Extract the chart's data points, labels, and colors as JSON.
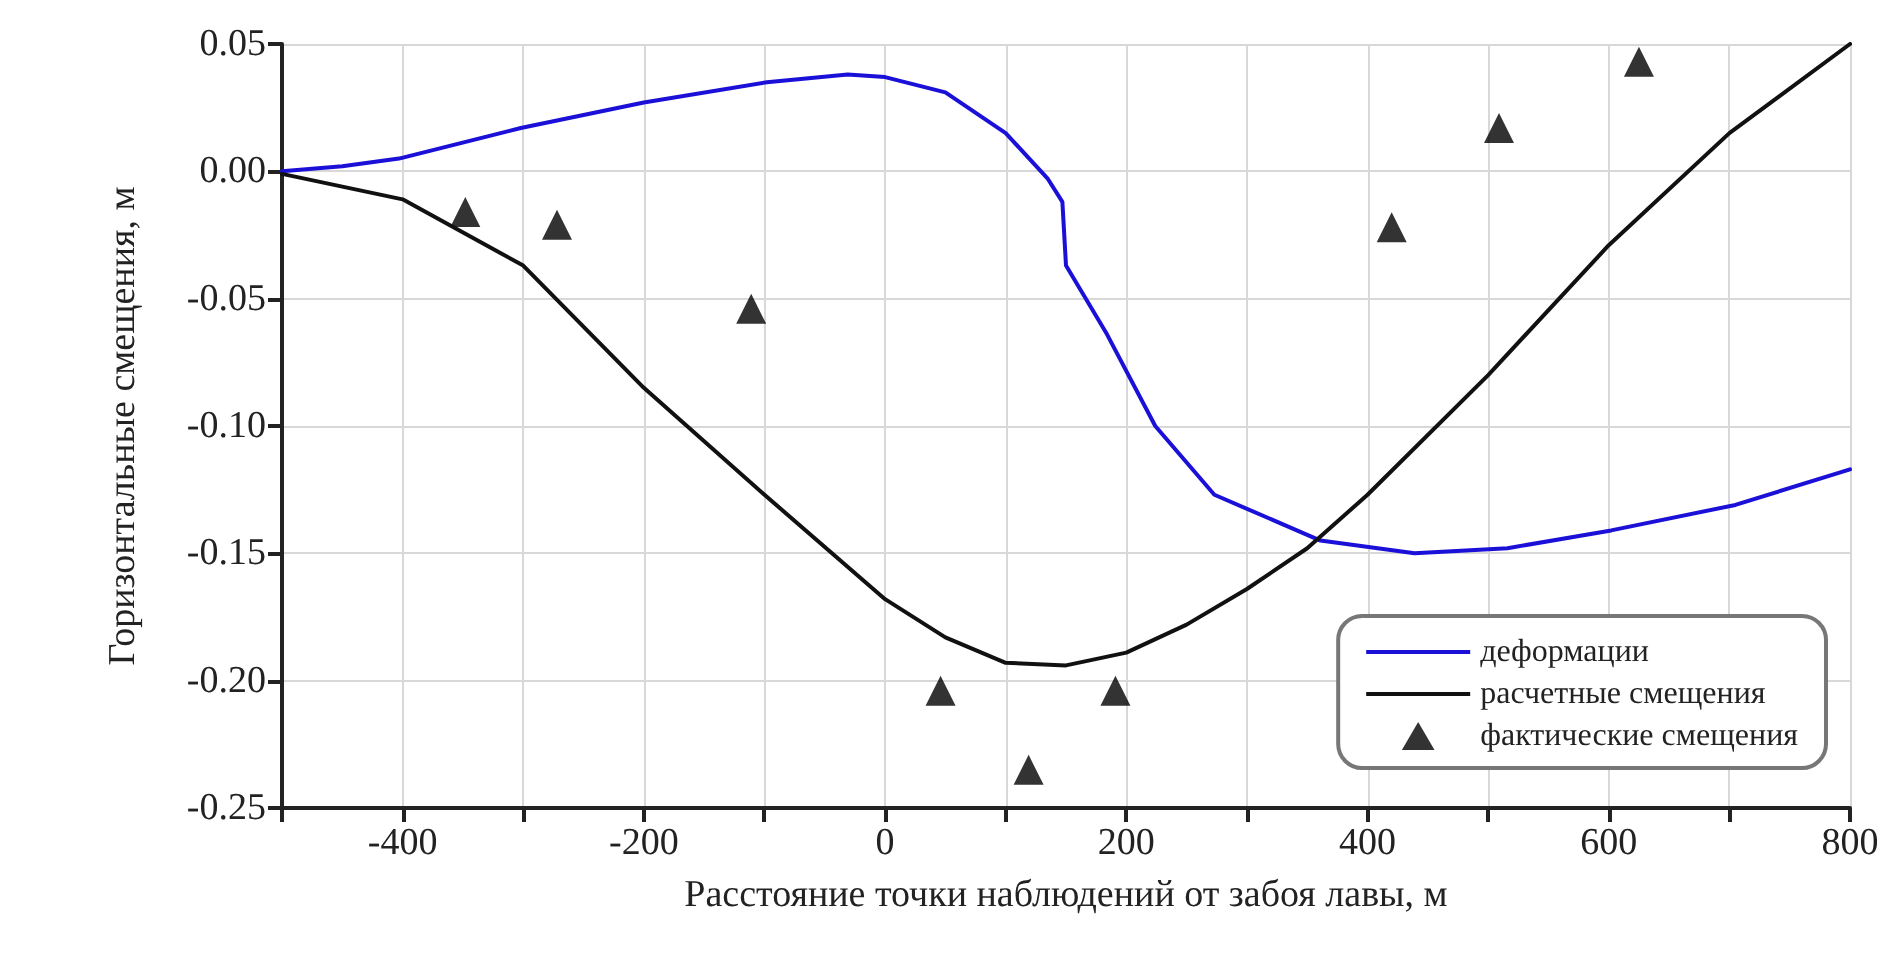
{
  "chart_data": {
    "type": "line",
    "xlabel": "Расстояние точки наблюдений от забоя лавы, м",
    "ylabel": "Горизонтальные смещения, м",
    "xlim": [
      -500,
      800
    ],
    "xticks": [
      {
        "value": -500,
        "label": null
      },
      -400,
      {
        "value": -300,
        "label": null
      },
      -200,
      {
        "value": -100,
        "label": null
      },
      0,
      {
        "value": 100,
        "label": null
      },
      200,
      {
        "value": 300,
        "label": null
      },
      400,
      {
        "value": 500,
        "label": null
      },
      600,
      {
        "value": 700,
        "label": null
      },
      800
    ],
    "ylim": [
      -0.25,
      0.05
    ],
    "yticks": [
      {
        "value": -0.25,
        "label": "-0.25"
      },
      {
        "value": -0.2,
        "label": "-0.20"
      },
      {
        "value": -0.15,
        "label": "-0.15"
      },
      {
        "value": -0.1,
        "label": "-0.10"
      },
      {
        "value": -0.05,
        "label": "-0.05"
      },
      {
        "value": 0,
        "label": "0.00"
      },
      {
        "value": 0.05,
        "label": "0.05"
      }
    ],
    "grid": true,
    "legend": "bottom right",
    "series": [
      {
        "name": "деформации",
        "color": "#1a10d8",
        "marker": "none",
        "line_style": "solid",
        "x": [
          -500,
          -450,
          -403,
          -302,
          -200,
          -98,
          -31,
          0,
          50,
          100,
          135,
          147,
          150,
          184,
          224,
          273,
          361,
          439,
          516,
          602,
          705,
          800
        ],
        "values": [
          0,
          0.002,
          0.005,
          0.017,
          0.027,
          0.035,
          0.038,
          0.037,
          0.031,
          0.015,
          -0.003,
          -0.012,
          -0.037,
          -0.064,
          -0.1,
          -0.127,
          -0.145,
          -0.15,
          -0.148,
          -0.141,
          -0.131,
          -0.117
        ]
      },
      {
        "name": "расчетные смещения",
        "color": "#111111",
        "marker": "none",
        "line_style": "solid",
        "x": [
          -500,
          -400,
          -300,
          -200,
          -100,
          0,
          50,
          100,
          150,
          200,
          250,
          300,
          350,
          400,
          500,
          600,
          700,
          800
        ],
        "values": [
          -0.001,
          -0.011,
          -0.037,
          -0.085,
          -0.127,
          -0.168,
          -0.183,
          -0.193,
          -0.194,
          -0.189,
          -0.178,
          -0.164,
          -0.148,
          -0.127,
          -0.08,
          -0.029,
          0.015,
          0.05
        ]
      },
      {
        "name": "фактические смещения",
        "type": "scatter",
        "color": "#000000",
        "marker": "triangle",
        "x": [
          -348,
          -272,
          -111,
          46,
          119,
          191,
          420,
          509,
          625
        ],
        "values": [
          -0.016,
          -0.021,
          -0.054,
          -0.204,
          -0.235,
          -0.204,
          -0.022,
          0.017,
          0.043
        ]
      }
    ]
  }
}
